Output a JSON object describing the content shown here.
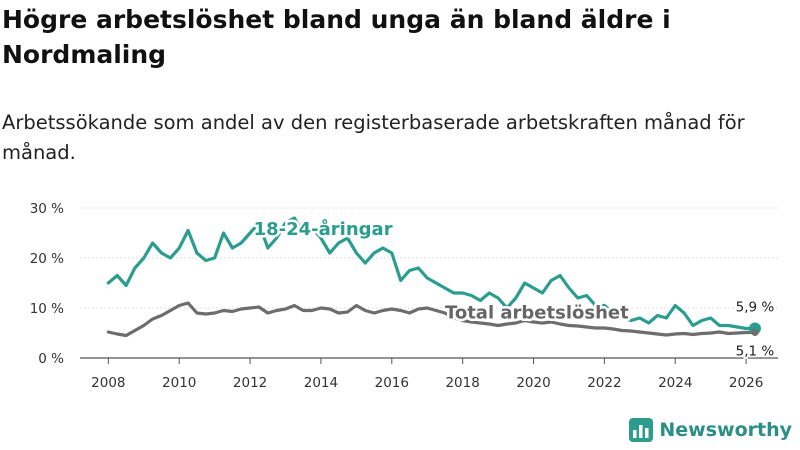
{
  "title": "Högre arbetslöshet bland unga än bland äldre i Nordmaling",
  "subtitle": "Arbetssökande som andel av den registerbaserade arbetskraften månad för månad.",
  "brand": {
    "name": "Newsworthy",
    "icon": "bar-chart-logo-icon",
    "color": "#2a9d8f"
  },
  "chart_data": {
    "type": "line",
    "y_ticks": [
      0,
      10,
      20,
      30
    ],
    "y_tick_labels": [
      "0 %",
      "10 %",
      "20 %",
      "30 %"
    ],
    "x_ticks": [
      2008,
      2010,
      2012,
      2014,
      2016,
      2018,
      2020,
      2022,
      2024,
      2026
    ],
    "xlim": [
      2007.2,
      2026.9
    ],
    "ylim": [
      0,
      30
    ],
    "series": [
      {
        "name": "18-24-åringar",
        "label": "18-24-åringar",
        "color": "#2a9d8f",
        "end_label": "5,9 %",
        "x": [
          2008.0,
          2008.25,
          2008.5,
          2008.75,
          2009.0,
          2009.25,
          2009.5,
          2009.75,
          2010.0,
          2010.25,
          2010.5,
          2010.75,
          2011.0,
          2011.25,
          2011.5,
          2011.75,
          2012.0,
          2012.25,
          2012.5,
          2012.75,
          2013.0,
          2013.25,
          2013.5,
          2013.75,
          2014.0,
          2014.25,
          2014.5,
          2014.75,
          2015.0,
          2015.25,
          2015.5,
          2015.75,
          2016.0,
          2016.25,
          2016.5,
          2016.75,
          2017.0,
          2017.25,
          2017.5,
          2017.75,
          2018.0,
          2018.25,
          2018.5,
          2018.75,
          2019.0,
          2019.25,
          2019.5,
          2019.75,
          2020.0,
          2020.25,
          2020.5,
          2020.75,
          2021.0,
          2021.25,
          2021.5,
          2021.75,
          2022.0,
          2022.25,
          2022.5,
          2022.75,
          2023.0,
          2023.25,
          2023.5,
          2023.75,
          2024.0,
          2024.25,
          2024.5,
          2024.75,
          2025.0,
          2025.25,
          2025.5,
          2025.75,
          2026.0,
          2026.25
        ],
        "values": [
          15,
          16.5,
          14.5,
          18,
          20,
          23,
          21,
          20,
          22,
          25.5,
          21,
          19.5,
          20,
          25,
          22,
          23,
          25,
          27,
          22,
          24,
          27,
          28,
          25,
          26,
          24,
          21,
          23,
          24,
          21,
          19,
          21,
          22,
          21,
          15.5,
          17.5,
          18,
          16,
          15,
          14,
          13,
          13,
          12.5,
          11.5,
          13,
          12,
          10,
          12,
          15,
          14,
          13,
          15.5,
          16.5,
          14,
          12,
          12.5,
          10.5,
          10.5,
          9,
          8,
          7.5,
          8,
          7,
          8.5,
          8,
          10.5,
          9,
          6.5,
          7.5,
          8,
          6.5,
          6.5,
          6.2,
          5.9,
          5.9
        ]
      },
      {
        "name": "Total arbetslöshet",
        "label": "Total arbetslöshet",
        "color": "#6d6d6d",
        "end_label": "5,1 %",
        "x": [
          2008.0,
          2008.25,
          2008.5,
          2008.75,
          2009.0,
          2009.25,
          2009.5,
          2009.75,
          2010.0,
          2010.25,
          2010.5,
          2010.75,
          2011.0,
          2011.25,
          2011.5,
          2011.75,
          2012.0,
          2012.25,
          2012.5,
          2012.75,
          2013.0,
          2013.25,
          2013.5,
          2013.75,
          2014.0,
          2014.25,
          2014.5,
          2014.75,
          2015.0,
          2015.25,
          2015.5,
          2015.75,
          2016.0,
          2016.25,
          2016.5,
          2016.75,
          2017.0,
          2017.25,
          2017.5,
          2017.75,
          2018.0,
          2018.25,
          2018.5,
          2018.75,
          2019.0,
          2019.25,
          2019.5,
          2019.75,
          2020.0,
          2020.25,
          2020.5,
          2020.75,
          2021.0,
          2021.25,
          2021.5,
          2021.75,
          2022.0,
          2022.25,
          2022.5,
          2022.75,
          2023.0,
          2023.25,
          2023.5,
          2023.75,
          2024.0,
          2024.25,
          2024.5,
          2024.75,
          2025.0,
          2025.25,
          2025.5,
          2025.75,
          2026.0,
          2026.25
        ],
        "values": [
          5.2,
          4.8,
          4.5,
          5.5,
          6.5,
          7.8,
          8.5,
          9.5,
          10.5,
          11,
          9,
          8.8,
          9,
          9.5,
          9.3,
          9.8,
          10,
          10.2,
          9,
          9.5,
          9.8,
          10.5,
          9.5,
          9.5,
          10,
          9.8,
          9,
          9.2,
          10.5,
          9.5,
          9,
          9.5,
          9.8,
          9.5,
          9,
          9.8,
          10,
          9.5,
          9,
          8,
          7.5,
          7.2,
          7,
          6.8,
          6.5,
          6.8,
          7,
          7.5,
          7.2,
          7,
          7.2,
          6.8,
          6.5,
          6.4,
          6.2,
          6,
          6,
          5.8,
          5.5,
          5.4,
          5.2,
          5,
          4.8,
          4.6,
          4.8,
          4.9,
          4.7,
          4.9,
          5,
          5.2,
          4.9,
          5.0,
          5.1,
          5.1
        ]
      }
    ]
  }
}
